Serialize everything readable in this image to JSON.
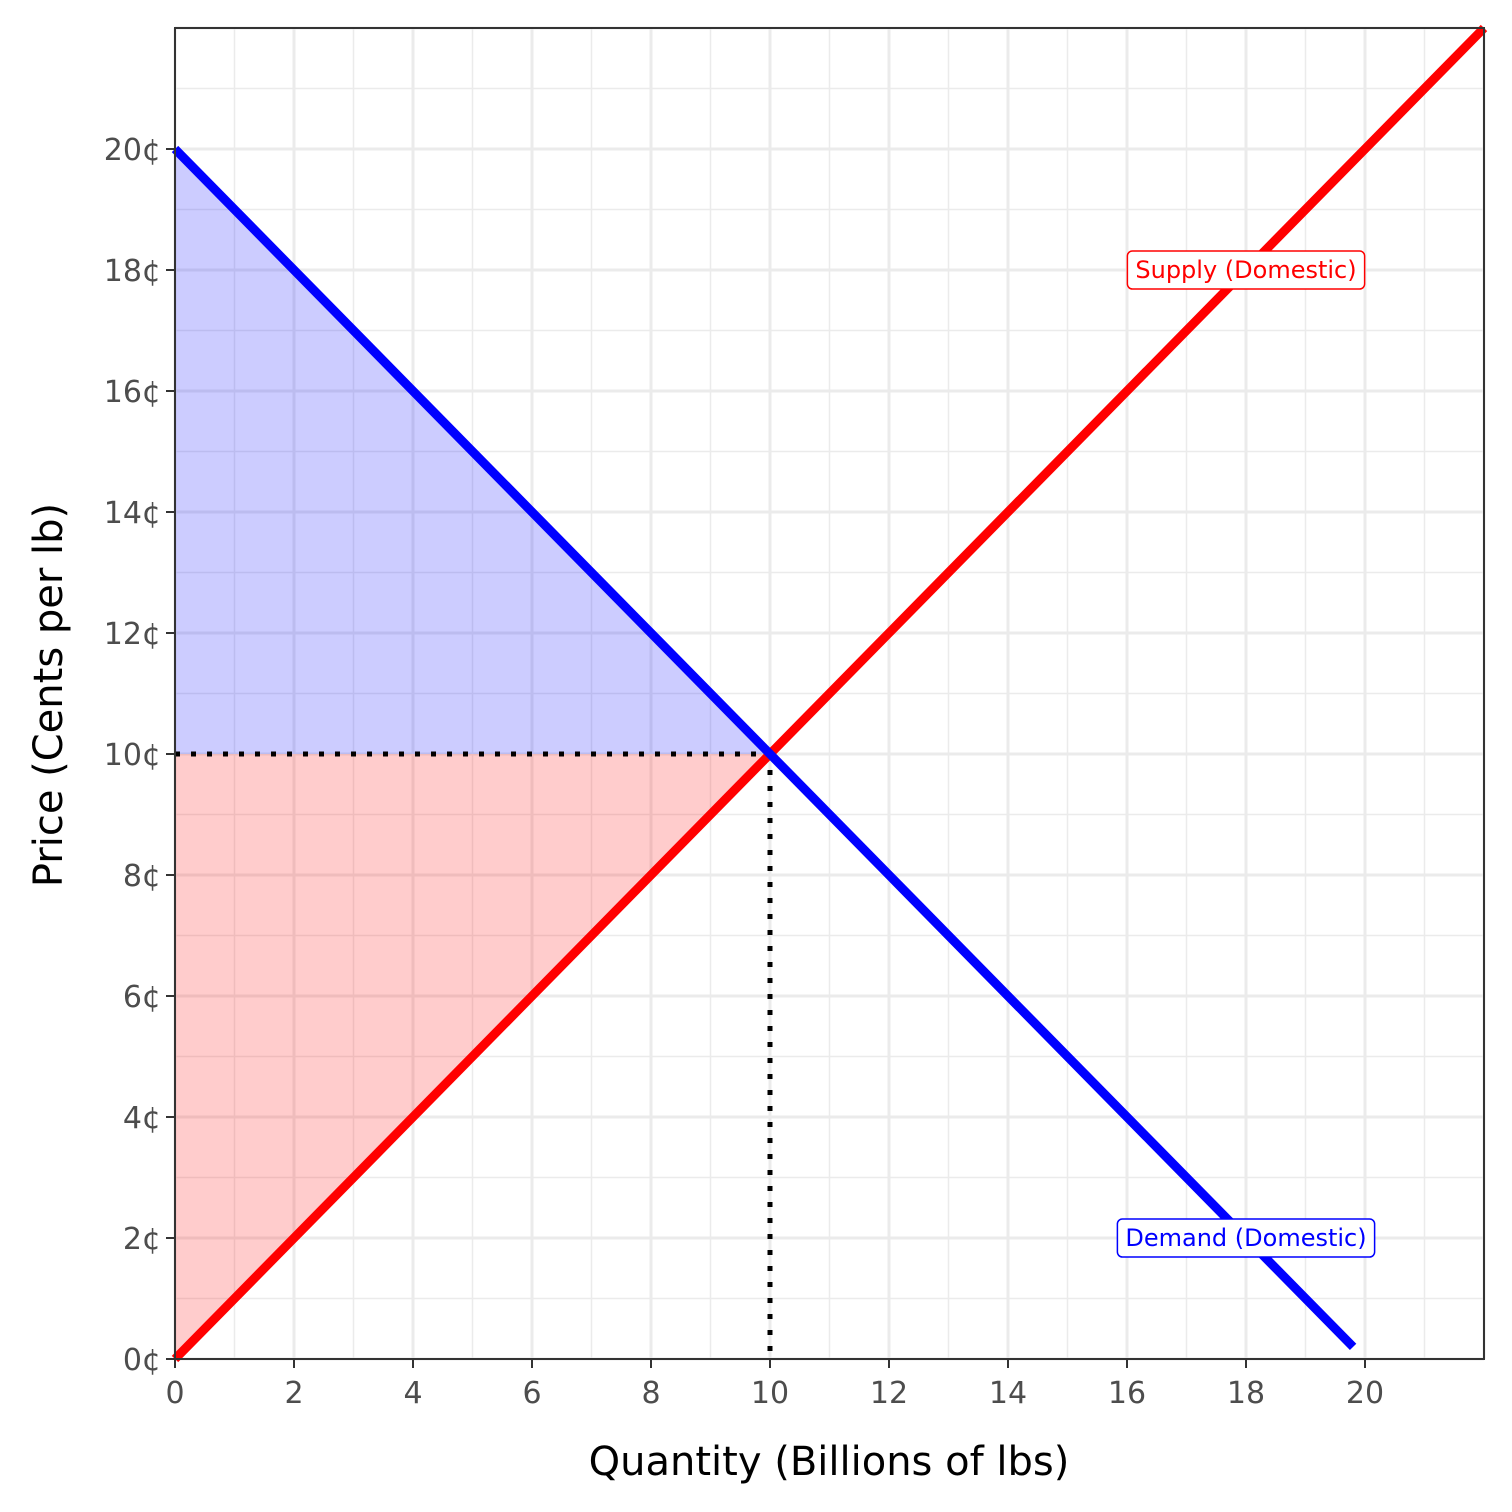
{
  "chart_data": {
    "type": "line",
    "xlabel": "Quantity (Billions of lbs)",
    "ylabel": "Price (Cents per lb)",
    "xlim": [
      0,
      22
    ],
    "ylim": [
      0,
      22
    ],
    "x_ticks": [
      0,
      2,
      4,
      6,
      8,
      10,
      12,
      14,
      16,
      18,
      20
    ],
    "x_tick_labels": [
      "0",
      "2",
      "4",
      "6",
      "8",
      "10",
      "12",
      "14",
      "16",
      "18",
      "20"
    ],
    "y_ticks": [
      0,
      2,
      4,
      6,
      8,
      10,
      12,
      14,
      16,
      18,
      20
    ],
    "y_tick_labels": [
      "0¢",
      "2¢",
      "4¢",
      "6¢",
      "8¢",
      "10¢",
      "12¢",
      "14¢",
      "16¢",
      "18¢",
      "20¢"
    ],
    "grid": true,
    "series": [
      {
        "name": "Supply (Domestic)",
        "color": "#ff0000",
        "x": [
          0,
          22
        ],
        "y": [
          0,
          22
        ],
        "label_at": [
          18,
          18
        ]
      },
      {
        "name": "Demand (Domestic)",
        "color": "#0000ff",
        "x": [
          0,
          19.8
        ],
        "y": [
          20,
          0.2
        ],
        "label_at": [
          18,
          2
        ]
      }
    ],
    "shaded_regions": [
      {
        "fill": "#0000ff",
        "opacity": 0.2,
        "points": [
          [
            0,
            20
          ],
          [
            10,
            10
          ],
          [
            0,
            10
          ]
        ]
      },
      {
        "fill": "#ff0000",
        "opacity": 0.2,
        "points": [
          [
            0,
            0
          ],
          [
            10,
            10
          ],
          [
            0,
            10
          ]
        ]
      }
    ],
    "reference_lines": [
      {
        "from": [
          0,
          10
        ],
        "to": [
          10,
          10
        ],
        "style": "dotted",
        "color": "#000000"
      },
      {
        "from": [
          10,
          10
        ],
        "to": [
          10,
          0
        ],
        "style": "dotted",
        "color": "#000000"
      }
    ]
  }
}
